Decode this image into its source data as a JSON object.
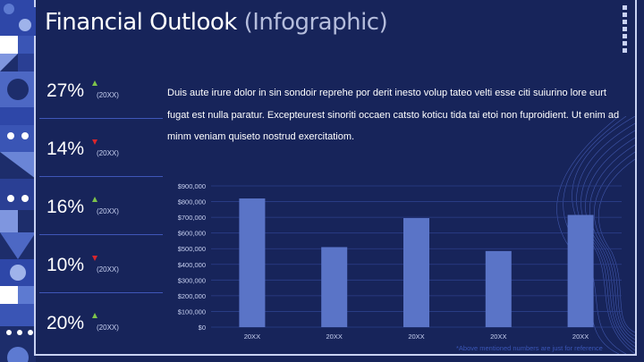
{
  "title": {
    "main": "Financial Outlook",
    "sub": "(Infographic)"
  },
  "stats": [
    {
      "value": "27%",
      "year": "(20XX)",
      "trend": "up"
    },
    {
      "value": "14%",
      "year": "(20XX)",
      "trend": "down"
    },
    {
      "value": "16%",
      "year": "(20XX)",
      "trend": "up"
    },
    {
      "value": "10%",
      "year": "(20XX)",
      "trend": "down"
    },
    {
      "value": "20%",
      "year": "(20XX)",
      "trend": "up"
    }
  ],
  "paragraph": "Duis aute irure dolor in sin sondoir reprehe por derit inesto volup tateo velti esse citi suiurino lore eurt fugat est nulla paratur. Excepteurest sinoriti occaen catsto koticu tida tai etoi non fuproidient. Ut enim ad minm veniam quiseto nostrud exercitatiom.",
  "footnote": "*Above mentioned numbers are just for reference",
  "colors": {
    "background": "#17245a",
    "bar": "#5a74c7",
    "up": "#7ec44a",
    "down": "#d8262c"
  },
  "chart_data": {
    "type": "bar",
    "categories": [
      "20XX",
      "20XX",
      "20XX",
      "20XX",
      "20XX"
    ],
    "values": [
      820000,
      510000,
      695000,
      485000,
      715000
    ],
    "y_ticks": [
      "$0",
      "$100,000",
      "$200,000",
      "$300,000",
      "$400,000",
      "$500,000",
      "$600,000",
      "$700,000",
      "$800,000",
      "$900,000"
    ],
    "ylim": [
      0,
      900000
    ],
    "grid": true,
    "legend": "none"
  }
}
